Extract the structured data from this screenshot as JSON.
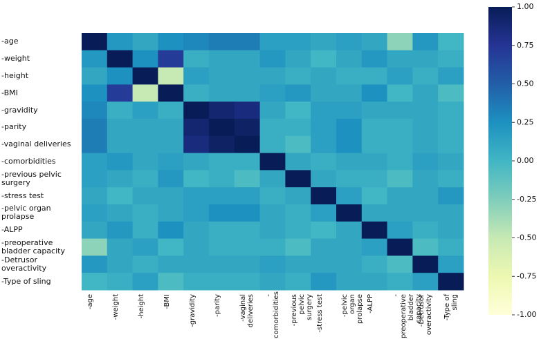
{
  "chart_data": {
    "type": "heatmap",
    "colormap": "YlGnBu",
    "categories": [
      "-age",
      "-weight",
      "-height",
      "-BMI",
      "-gravidity",
      "-parity",
      "-vaginal deliveries",
      "-comorbidities",
      "-previous pelvic surgery",
      "-stress test",
      "-pelvic organ prolapse",
      "-ALPP",
      "-preoperative bladder capacity",
      "-Detrusor overactivity",
      "-Type of sling"
    ],
    "values": [
      [
        1,
        0.2,
        0.1,
        0.25,
        0.3,
        0.35,
        0.35,
        0.15,
        0.15,
        0.1,
        0.15,
        0.1,
        -0.3,
        0.2,
        0
      ],
      [
        0.2,
        1,
        0.25,
        0.7,
        0.05,
        0.1,
        0.1,
        0.2,
        0.1,
        0,
        0.1,
        0.2,
        0.1,
        0.1,
        0.05
      ],
      [
        0.1,
        0.25,
        1,
        -0.5,
        0.15,
        0.1,
        0.1,
        0.1,
        0.05,
        0.1,
        0.05,
        0.05,
        0.15,
        0.05,
        0.15
      ],
      [
        0.25,
        0.7,
        -0.5,
        1,
        0.05,
        0.1,
        0.1,
        0.15,
        0.2,
        0.1,
        0.1,
        0.25,
        0,
        0.1,
        -0.05
      ],
      [
        0.3,
        0.05,
        0.15,
        0.05,
        1,
        0.9,
        0.85,
        0.1,
        0,
        0.15,
        0.15,
        0.1,
        0.1,
        0.1,
        0.05
      ],
      [
        0.35,
        0.1,
        0.1,
        0.1,
        0.9,
        1,
        0.95,
        0.05,
        0.05,
        0.15,
        0.25,
        0.05,
        0.05,
        0.1,
        0.05
      ],
      [
        0.35,
        0.1,
        0.1,
        0.1,
        0.85,
        0.95,
        1,
        0.05,
        -0.05,
        0.15,
        0.25,
        0.05,
        0.05,
        0.1,
        0.05
      ],
      [
        0.15,
        0.2,
        0.1,
        0.15,
        0.1,
        0.05,
        0.05,
        1,
        0.1,
        0.05,
        0.1,
        0.1,
        0.05,
        0.15,
        0.1
      ],
      [
        0.15,
        0.1,
        0.05,
        0.2,
        0,
        0.05,
        -0.05,
        0.1,
        1,
        0.1,
        0.05,
        0.05,
        -0.05,
        0.1,
        0.05
      ],
      [
        0.1,
        0,
        0.1,
        0.1,
        0.15,
        0.15,
        0.15,
        0.05,
        0.1,
        1,
        0.15,
        0,
        0.1,
        0.1,
        0.2
      ],
      [
        0.15,
        0.1,
        0.05,
        0.1,
        0.15,
        0.25,
        0.25,
        0.1,
        0.05,
        0.15,
        1,
        0.1,
        0.1,
        0.1,
        0.1
      ],
      [
        0.1,
        0.2,
        0.05,
        0.25,
        0.1,
        0.05,
        0.05,
        0.1,
        0.05,
        0,
        0.1,
        1,
        0.15,
        0.05,
        0.1
      ],
      [
        -0.3,
        0.1,
        0.15,
        0,
        0.1,
        0.05,
        0.05,
        0.05,
        -0.05,
        0.1,
        0.1,
        0.15,
        1,
        -0.05,
        0.05
      ],
      [
        0.2,
        0.1,
        0.05,
        0.1,
        0.1,
        0.1,
        0.1,
        0.15,
        0.1,
        0.1,
        0.1,
        0.05,
        -0.05,
        1,
        0.15
      ],
      [
        0,
        0.05,
        0.15,
        -0.05,
        0.05,
        0.05,
        0.05,
        0.1,
        0.05,
        0.2,
        0.1,
        0.1,
        0.05,
        0.15,
        1
      ]
    ],
    "zlim": [
      -1,
      1
    ],
    "zticks": [
      {
        "value": 1,
        "label": "1.00"
      },
      {
        "value": 0.75,
        "label": "0.75"
      },
      {
        "value": 0.5,
        "label": "0.50"
      },
      {
        "value": 0.25,
        "label": "0.25"
      },
      {
        "value": 0,
        "label": "0.00"
      },
      {
        "value": -0.25,
        "label": "-0.25"
      },
      {
        "value": -0.5,
        "label": "-0.50"
      },
      {
        "value": -0.75,
        "label": "-0.75"
      },
      {
        "value": -1,
        "label": "-1.00"
      }
    ]
  }
}
